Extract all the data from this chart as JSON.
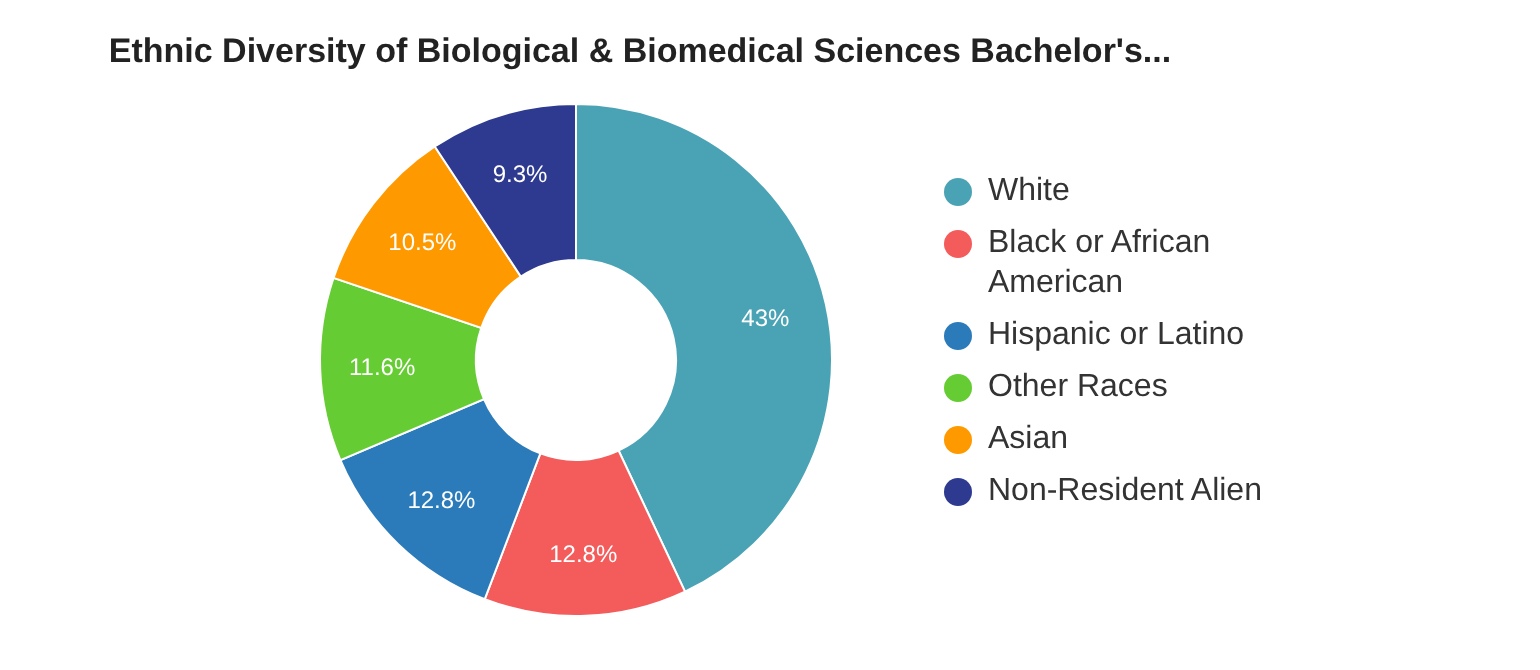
{
  "chart_data": {
    "type": "donut",
    "title": "Ethnic Diversity of Biological & Biomedical Sciences Bachelor's...",
    "categories": [
      "White",
      "Black or African American",
      "Hispanic or Latino",
      "Other Races",
      "Asian",
      "Non-Resident Alien"
    ],
    "values": [
      43,
      12.8,
      12.8,
      11.6,
      10.5,
      9.3
    ],
    "value_labels": [
      "43%",
      "12.8%",
      "12.8%",
      "11.6%",
      "10.5%",
      "9.3%"
    ],
    "colors": [
      "#4aa3b5",
      "#f45b5b",
      "#2b7bba",
      "#66cc33",
      "#ff9900",
      "#2e3a8f"
    ],
    "legend": "right"
  }
}
